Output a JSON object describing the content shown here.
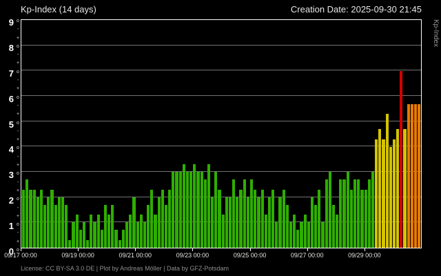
{
  "header": {
    "title": "Kp-Index (14 days)",
    "creation": "Creation Date: 2025-09-30 21:45"
  },
  "footer": {
    "license": "License: CC BY-SA 3.0 DE | Plot by Andreas Möller | Data by GFZ-Potsdam"
  },
  "right_axis_label": "Kp-Index",
  "colors": {
    "background": "#000000",
    "frame": "#ffffff",
    "grid": "#6e6e6e",
    "text": "#e6e6e6",
    "muted": "#8f8f8f",
    "green": "#2fae00",
    "yellow": "#d6c400",
    "orange": "#e87a00",
    "red": "#d40000"
  },
  "chart_data": {
    "type": "bar",
    "title": "Kp-Index (14 days)",
    "ylabel": "Kp-Index",
    "xlabel": "",
    "ylim": [
      0,
      9
    ],
    "grid": true,
    "bin_hours": 3,
    "bars_total": 112,
    "x_ticks": [
      {
        "label": "09/17 00:00",
        "bar_index": 0
      },
      {
        "label": "09/19 00:00",
        "bar_index": 16
      },
      {
        "label": "09/21 00:00",
        "bar_index": 32
      },
      {
        "label": "09/23 00:00",
        "bar_index": 48
      },
      {
        "label": "09/25 00:00",
        "bar_index": 64
      },
      {
        "label": "09/27 00:00",
        "bar_index": 80
      },
      {
        "label": "09/29 00:00",
        "bar_index": 96
      }
    ],
    "y_tick_labels": [
      "0",
      "1",
      "2",
      "3",
      "4",
      "5",
      "6",
      "7",
      "8",
      "9"
    ],
    "values": [
      2.3,
      2.7,
      2.3,
      2.3,
      2.0,
      2.3,
      1.7,
      2.0,
      2.3,
      1.7,
      2.0,
      2.0,
      1.7,
      0.3,
      1.0,
      1.3,
      0.7,
      1.0,
      0.3,
      1.3,
      1.0,
      1.3,
      0.7,
      1.7,
      1.3,
      1.7,
      0.7,
      0.3,
      0.7,
      1.0,
      1.3,
      2.0,
      1.0,
      1.3,
      1.0,
      1.7,
      2.3,
      1.3,
      2.0,
      2.3,
      1.7,
      2.3,
      3.0,
      3.0,
      3.0,
      3.3,
      3.0,
      3.0,
      3.3,
      3.0,
      3.0,
      2.7,
      3.3,
      2.0,
      3.0,
      2.3,
      1.3,
      2.0,
      2.0,
      2.7,
      2.0,
      2.3,
      2.7,
      2.0,
      2.7,
      2.3,
      2.0,
      2.3,
      1.3,
      2.0,
      2.3,
      1.0,
      2.0,
      2.3,
      1.7,
      1.0,
      1.3,
      0.7,
      1.0,
      1.3,
      1.0,
      2.0,
      1.7,
      2.3,
      1.0,
      2.7,
      3.0,
      1.7,
      1.3,
      2.7,
      2.7,
      3.0,
      2.3,
      2.7,
      2.7,
      2.3,
      2.3,
      2.7,
      3.0,
      4.3,
      4.7,
      4.3,
      5.3,
      4.0,
      4.3,
      4.7,
      7.0,
      4.7,
      5.7,
      5.7,
      5.7,
      5.7
    ],
    "color_thresholds": [
      {
        "max": 4.0,
        "color": "#2fae00"
      },
      {
        "max": 5.5,
        "color": "#d6c400"
      },
      {
        "max": 6.5,
        "color": "#e87a00"
      },
      {
        "max": 9.9,
        "color": "#d40000"
      }
    ],
    "legend_position": "none"
  }
}
